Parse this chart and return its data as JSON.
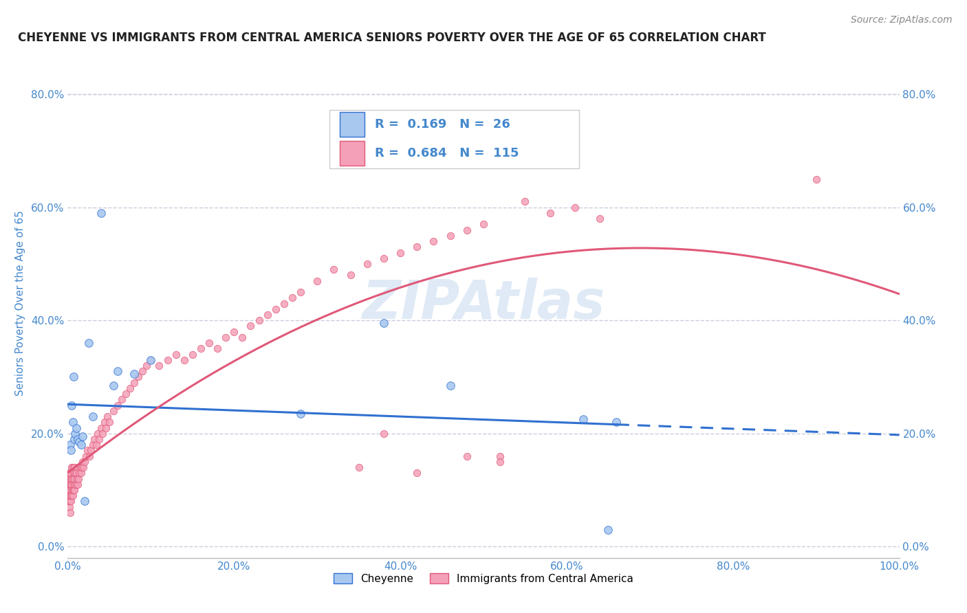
{
  "title": "CHEYENNE VS IMMIGRANTS FROM CENTRAL AMERICA SENIORS POVERTY OVER THE AGE OF 65 CORRELATION CHART",
  "source": "Source: ZipAtlas.com",
  "ylabel": "Seniors Poverty Over the Age of 65",
  "watermark": "ZIPAtlas",
  "legend_label1": "Cheyenne",
  "legend_label2": "Immigrants from Central America",
  "R1": 0.169,
  "N1": 26,
  "R2": 0.684,
  "N2": 115,
  "color1": "#A8C8F0",
  "color2": "#F4A0B8",
  "line_color1": "#3070D0",
  "line_color2": "#E05878",
  "cheyenne_x": [
    0.003,
    0.004,
    0.005,
    0.006,
    0.007,
    0.008,
    0.009,
    0.01,
    0.012,
    0.014,
    0.016,
    0.018,
    0.02,
    0.025,
    0.03,
    0.04,
    0.055,
    0.06,
    0.08,
    0.1,
    0.28,
    0.38,
    0.46,
    0.62,
    0.65,
    0.66
  ],
  "cheyenne_y": [
    0.18,
    0.17,
    0.25,
    0.22,
    0.3,
    0.19,
    0.2,
    0.21,
    0.19,
    0.185,
    0.18,
    0.195,
    0.08,
    0.36,
    0.23,
    0.59,
    0.285,
    0.31,
    0.305,
    0.33,
    0.235,
    0.395,
    0.285,
    0.225,
    0.03,
    0.22
  ],
  "immigrants_x": [
    0.001,
    0.001,
    0.001,
    0.001,
    0.002,
    0.002,
    0.002,
    0.002,
    0.002,
    0.002,
    0.003,
    0.003,
    0.003,
    0.003,
    0.003,
    0.003,
    0.004,
    0.004,
    0.004,
    0.004,
    0.005,
    0.005,
    0.005,
    0.005,
    0.005,
    0.006,
    0.006,
    0.006,
    0.006,
    0.007,
    0.007,
    0.007,
    0.008,
    0.008,
    0.008,
    0.009,
    0.009,
    0.01,
    0.01,
    0.011,
    0.012,
    0.012,
    0.013,
    0.014,
    0.015,
    0.016,
    0.017,
    0.018,
    0.019,
    0.02,
    0.022,
    0.024,
    0.026,
    0.028,
    0.03,
    0.032,
    0.034,
    0.036,
    0.038,
    0.04,
    0.042,
    0.044,
    0.046,
    0.048,
    0.05,
    0.055,
    0.06,
    0.065,
    0.07,
    0.075,
    0.08,
    0.085,
    0.09,
    0.095,
    0.1,
    0.11,
    0.12,
    0.13,
    0.14,
    0.15,
    0.16,
    0.17,
    0.18,
    0.19,
    0.2,
    0.21,
    0.22,
    0.23,
    0.24,
    0.25,
    0.26,
    0.27,
    0.28,
    0.3,
    0.32,
    0.34,
    0.36,
    0.38,
    0.4,
    0.42,
    0.44,
    0.46,
    0.48,
    0.5,
    0.52,
    0.35,
    0.38,
    0.42,
    0.48,
    0.52,
    0.55,
    0.58,
    0.61,
    0.64,
    0.9
  ],
  "immigrants_y": [
    0.08,
    0.09,
    0.1,
    0.12,
    0.07,
    0.08,
    0.1,
    0.11,
    0.12,
    0.13,
    0.06,
    0.08,
    0.09,
    0.1,
    0.11,
    0.13,
    0.08,
    0.09,
    0.11,
    0.12,
    0.09,
    0.1,
    0.11,
    0.12,
    0.14,
    0.09,
    0.1,
    0.12,
    0.14,
    0.1,
    0.11,
    0.13,
    0.1,
    0.12,
    0.14,
    0.11,
    0.13,
    0.11,
    0.13,
    0.12,
    0.11,
    0.14,
    0.12,
    0.13,
    0.14,
    0.13,
    0.14,
    0.15,
    0.14,
    0.15,
    0.16,
    0.17,
    0.16,
    0.17,
    0.18,
    0.19,
    0.18,
    0.2,
    0.19,
    0.21,
    0.2,
    0.22,
    0.21,
    0.23,
    0.22,
    0.24,
    0.25,
    0.26,
    0.27,
    0.28,
    0.29,
    0.3,
    0.31,
    0.32,
    0.33,
    0.32,
    0.33,
    0.34,
    0.33,
    0.34,
    0.35,
    0.36,
    0.35,
    0.37,
    0.38,
    0.37,
    0.39,
    0.4,
    0.41,
    0.42,
    0.43,
    0.44,
    0.45,
    0.47,
    0.49,
    0.48,
    0.5,
    0.51,
    0.52,
    0.53,
    0.54,
    0.55,
    0.56,
    0.57,
    0.16,
    0.14,
    0.2,
    0.13,
    0.16,
    0.15,
    0.61,
    0.59,
    0.6,
    0.58,
    0.65
  ],
  "xlim": [
    0.0,
    1.0
  ],
  "ylim": [
    -0.02,
    0.88
  ],
  "yticks": [
    0.0,
    0.2,
    0.4,
    0.6,
    0.8
  ],
  "xticks": [
    0.0,
    0.2,
    0.4,
    0.6,
    0.8,
    1.0
  ],
  "grid_color": "#CCCCDD",
  "bg_color": "#FFFFFF",
  "watermark_color": "#CADCF0",
  "title_color": "#222222",
  "axis_label_color": "#4488CC",
  "tick_label_color": "#4488CC",
  "title_fontsize": 12,
  "source_fontsize": 10,
  "tick_fontsize": 11,
  "ylabel_fontsize": 11
}
